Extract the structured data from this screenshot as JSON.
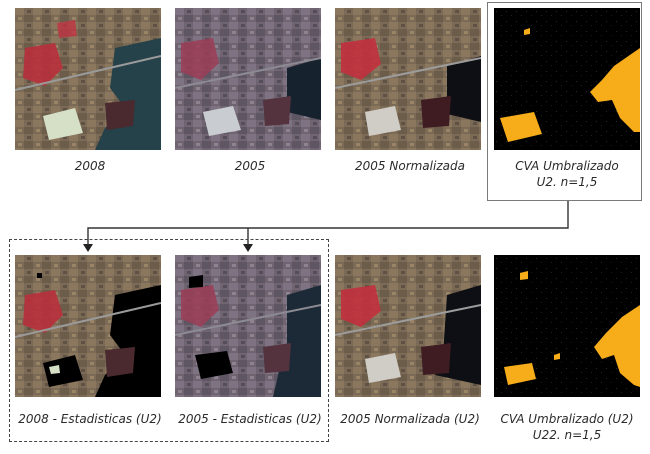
{
  "colors": {
    "vegetation_red": "#c0303a",
    "water_dark": "#243c44",
    "water_normalized": "#0d0f14",
    "change_orange": "#f7ad1a",
    "background_black": "#000000",
    "terrain_brown": "#7d6a52"
  },
  "row1": [
    {
      "caption_line1": "2008",
      "caption_line2": ""
    },
    {
      "caption_line1": "2005",
      "caption_line2": ""
    },
    {
      "caption_line1": "2005 Normalizada",
      "caption_line2": ""
    },
    {
      "caption_line1": "CVA Umbralizado",
      "caption_line2": "U2.   n=1,5"
    }
  ],
  "row2": [
    {
      "caption_line1": "2008 - Estadisticas (U2)",
      "caption_line2": ""
    },
    {
      "caption_line1": "2005 - Estadisticas (U2)",
      "caption_line2": ""
    },
    {
      "caption_line1": "2005 Normalizada (U2)",
      "caption_line2": ""
    },
    {
      "caption_line1": "CVA Umbralizado (U2)",
      "caption_line2": "U22.   n=1,5"
    }
  ]
}
